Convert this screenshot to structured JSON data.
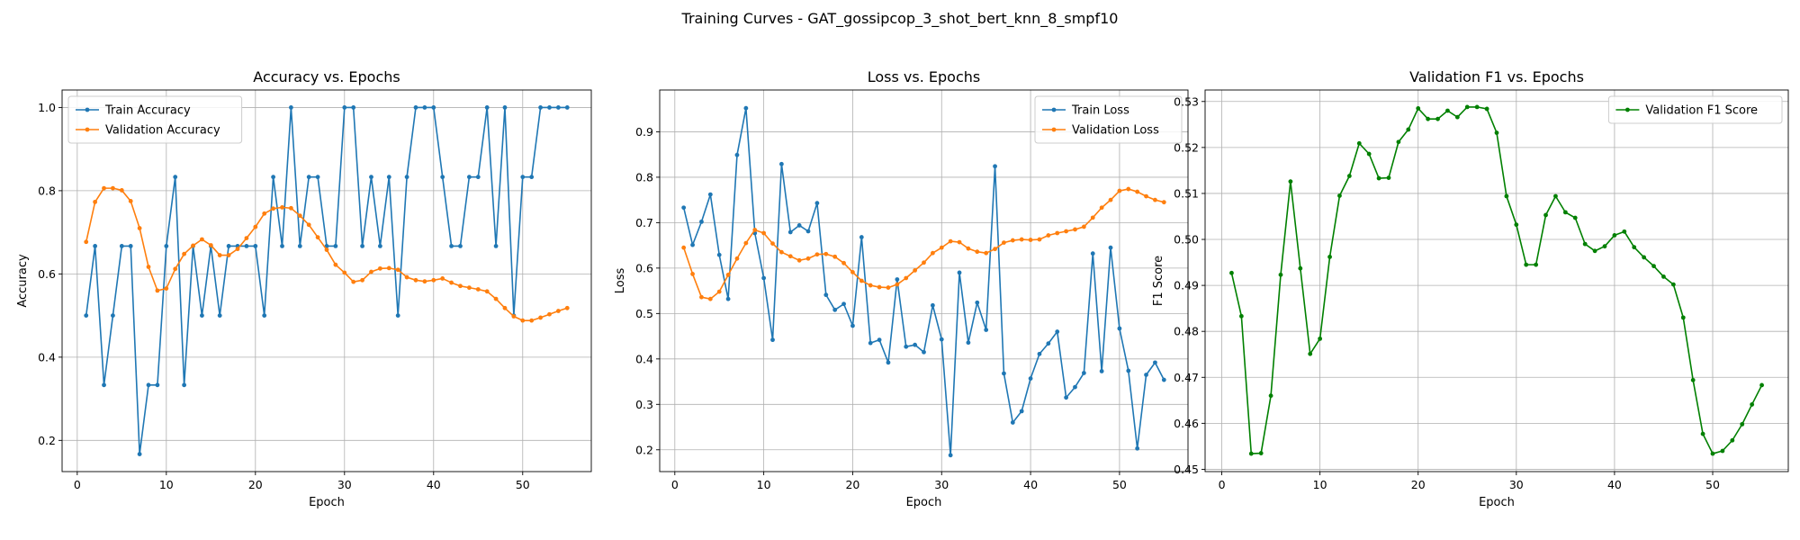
{
  "figure": {
    "suptitle": "Training Curves - GAT_gossipcop_3_shot_bert_knn_8_smpf10"
  },
  "colors": {
    "train": "#1f77b4",
    "validation": "#ff7f0e",
    "f1": "#008000",
    "grid": "#b0b0b0"
  },
  "chart_data": [
    {
      "type": "line",
      "title": "Accuracy vs. Epochs",
      "xlabel": "Epoch",
      "ylabel": "Accuracy",
      "xlim": [
        -1.7,
        57.7
      ],
      "ylim": [
        0.125,
        1.042
      ],
      "xticks": [
        0,
        10,
        20,
        30,
        40,
        50
      ],
      "yticks": [
        0.2,
        0.4,
        0.6,
        0.8,
        1.0
      ],
      "ytick_decimals": 1,
      "grid": true,
      "legend": "upper-left",
      "x": [
        1,
        2,
        3,
        4,
        5,
        6,
        7,
        8,
        9,
        10,
        11,
        12,
        13,
        14,
        15,
        16,
        17,
        18,
        19,
        20,
        21,
        22,
        23,
        24,
        25,
        26,
        27,
        28,
        29,
        30,
        31,
        32,
        33,
        34,
        35,
        36,
        37,
        38,
        39,
        40,
        41,
        42,
        43,
        44,
        45,
        46,
        47,
        48,
        49,
        50,
        51,
        52,
        53,
        54,
        55
      ],
      "series": [
        {
          "name": "Train Accuracy",
          "color": "#1f77b4",
          "values": [
            0.5,
            0.667,
            0.333,
            0.5,
            0.667,
            0.667,
            0.167,
            0.333,
            0.333,
            0.667,
            0.833,
            0.333,
            0.667,
            0.5,
            0.667,
            0.5,
            0.667,
            0.667,
            0.667,
            0.667,
            0.5,
            0.833,
            0.667,
            1.0,
            0.667,
            0.833,
            0.833,
            0.667,
            0.667,
            1.0,
            1.0,
            0.667,
            0.833,
            0.667,
            0.833,
            0.5,
            0.833,
            1.0,
            1.0,
            1.0,
            0.833,
            0.667,
            0.667,
            0.833,
            0.833,
            1.0,
            0.667,
            1.0,
            0.5,
            0.833,
            0.833,
            1.0,
            1.0,
            1.0,
            1.0
          ]
        },
        {
          "name": "Validation Accuracy",
          "color": "#ff7f0e",
          "values": [
            0.677,
            0.773,
            0.806,
            0.806,
            0.801,
            0.775,
            0.71,
            0.617,
            0.56,
            0.565,
            0.612,
            0.648,
            0.668,
            0.683,
            0.669,
            0.645,
            0.645,
            0.66,
            0.686,
            0.713,
            0.745,
            0.757,
            0.76,
            0.758,
            0.74,
            0.718,
            0.688,
            0.658,
            0.622,
            0.603,
            0.581,
            0.585,
            0.605,
            0.613,
            0.614,
            0.61,
            0.592,
            0.585,
            0.582,
            0.585,
            0.589,
            0.579,
            0.571,
            0.567,
            0.563,
            0.558,
            0.54,
            0.518,
            0.498,
            0.488,
            0.488,
            0.495,
            0.503,
            0.511,
            0.518
          ]
        }
      ]
    },
    {
      "type": "line",
      "title": "Loss vs. Epochs",
      "xlabel": "Epoch",
      "ylabel": "Loss",
      "xlim": [
        -1.7,
        57.7
      ],
      "ylim": [
        0.152,
        0.992
      ],
      "xticks": [
        0,
        10,
        20,
        30,
        40,
        50
      ],
      "yticks": [
        0.2,
        0.3,
        0.4,
        0.5,
        0.6,
        0.7,
        0.8,
        0.9
      ],
      "ytick_decimals": 1,
      "grid": true,
      "legend": "upper-right",
      "x": [
        1,
        2,
        3,
        4,
        5,
        6,
        7,
        8,
        9,
        10,
        11,
        12,
        13,
        14,
        15,
        16,
        17,
        18,
        19,
        20,
        21,
        22,
        23,
        24,
        25,
        26,
        27,
        28,
        29,
        30,
        31,
        32,
        33,
        34,
        35,
        36,
        37,
        38,
        39,
        40,
        41,
        42,
        43,
        44,
        45,
        46,
        47,
        48,
        49,
        50,
        51,
        52,
        53,
        54,
        55
      ],
      "series": [
        {
          "name": "Train Loss",
          "color": "#1f77b4",
          "values": [
            0.733,
            0.651,
            0.702,
            0.762,
            0.629,
            0.532,
            0.849,
            0.952,
            0.677,
            0.578,
            0.442,
            0.829,
            0.679,
            0.694,
            0.681,
            0.743,
            0.541,
            0.508,
            0.521,
            0.473,
            0.668,
            0.435,
            0.442,
            0.392,
            0.575,
            0.427,
            0.431,
            0.415,
            0.518,
            0.443,
            0.188,
            0.59,
            0.436,
            0.524,
            0.464,
            0.824,
            0.368,
            0.26,
            0.285,
            0.357,
            0.411,
            0.434,
            0.46,
            0.315,
            0.338,
            0.369,
            0.632,
            0.373,
            0.645,
            0.467,
            0.374,
            0.203,
            0.365,
            0.392,
            0.354
          ]
        },
        {
          "name": "Validation Loss",
          "color": "#ff7f0e",
          "values": [
            0.645,
            0.587,
            0.536,
            0.532,
            0.548,
            0.585,
            0.621,
            0.655,
            0.684,
            0.677,
            0.654,
            0.635,
            0.626,
            0.617,
            0.621,
            0.63,
            0.631,
            0.625,
            0.611,
            0.591,
            0.572,
            0.562,
            0.558,
            0.557,
            0.564,
            0.578,
            0.595,
            0.612,
            0.633,
            0.645,
            0.659,
            0.657,
            0.643,
            0.636,
            0.633,
            0.642,
            0.656,
            0.661,
            0.663,
            0.662,
            0.663,
            0.672,
            0.677,
            0.681,
            0.685,
            0.691,
            0.711,
            0.733,
            0.75,
            0.77,
            0.774,
            0.768,
            0.758,
            0.75,
            0.745
          ]
        }
      ]
    },
    {
      "type": "line",
      "title": "Validation F1 vs. Epochs",
      "xlabel": "Epoch",
      "ylabel": "F1 Score",
      "xlim": [
        -1.7,
        57.7
      ],
      "ylim": [
        0.4495,
        0.5325
      ],
      "xticks": [
        0,
        10,
        20,
        30,
        40,
        50
      ],
      "yticks": [
        0.45,
        0.46,
        0.47,
        0.48,
        0.49,
        0.5,
        0.51,
        0.52,
        0.53
      ],
      "ytick_decimals": 2,
      "grid": true,
      "legend": "upper-right",
      "x": [
        1,
        2,
        3,
        4,
        5,
        6,
        7,
        8,
        9,
        10,
        11,
        12,
        13,
        14,
        15,
        16,
        17,
        18,
        19,
        20,
        21,
        22,
        23,
        24,
        25,
        26,
        27,
        28,
        29,
        30,
        31,
        32,
        33,
        34,
        35,
        36,
        37,
        38,
        39,
        40,
        41,
        42,
        43,
        44,
        45,
        46,
        47,
        48,
        49,
        50,
        51,
        52,
        53,
        54,
        55
      ],
      "series": [
        {
          "name": "Validation F1 Score",
          "color": "#008000",
          "values": [
            0.4927,
            0.4833,
            0.4534,
            0.4535,
            0.466,
            0.4923,
            0.5126,
            0.4937,
            0.4751,
            0.4784,
            0.4962,
            0.5095,
            0.5138,
            0.5209,
            0.5186,
            0.5133,
            0.5134,
            0.5212,
            0.5239,
            0.5285,
            0.5262,
            0.5262,
            0.528,
            0.5266,
            0.5288,
            0.5288,
            0.5284,
            0.5232,
            0.5094,
            0.5032,
            0.4945,
            0.4945,
            0.5053,
            0.5094,
            0.5059,
            0.5047,
            0.499,
            0.4975,
            0.4985,
            0.5009,
            0.5017,
            0.4983,
            0.4961,
            0.4942,
            0.4919,
            0.4902,
            0.483,
            0.4694,
            0.4577,
            0.4534,
            0.454,
            0.4563,
            0.4598,
            0.4641,
            0.4683
          ]
        }
      ]
    }
  ]
}
